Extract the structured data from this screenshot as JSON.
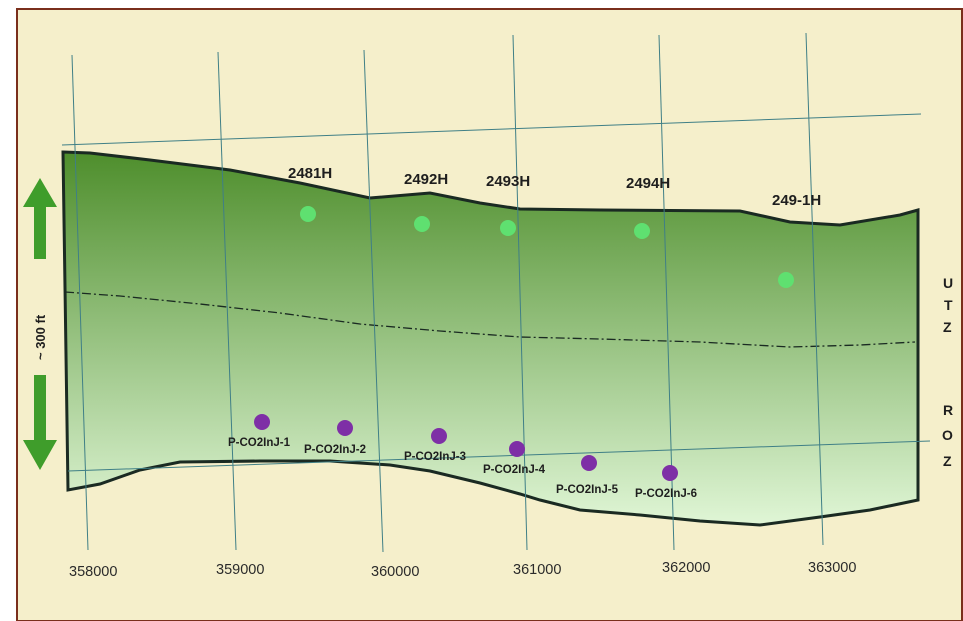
{
  "colors": {
    "background": "#f5efcb",
    "frame": "#7a2f1c",
    "gradient_top": "#4e8e2c",
    "gradient_bottom": "#e0f6d6",
    "grid_line": "#3f7f86",
    "production_well": "#5fe070",
    "injection_well": "#7e2fa6",
    "arrow": "#3f9d2b",
    "outline": "#1a2a22"
  },
  "grid_labels": [
    "358000",
    "359000",
    "360000",
    "361000",
    "362000",
    "363000"
  ],
  "production_wells": [
    "2481H",
    "2492H",
    "2493H",
    "2494H",
    "249-1H"
  ],
  "injection_wells": [
    "P-CO2InJ-1",
    "P-CO2InJ-2",
    "P-CO2InJ-3",
    "P-CO2InJ-4",
    "P-CO2InJ-5",
    "P-CO2InJ-6"
  ],
  "thickness_label": "~ 300 ft",
  "zones": [
    {
      "letters": [
        "U",
        "T",
        "Z"
      ]
    },
    {
      "letters": [
        "R",
        "O",
        "Z"
      ]
    }
  ]
}
